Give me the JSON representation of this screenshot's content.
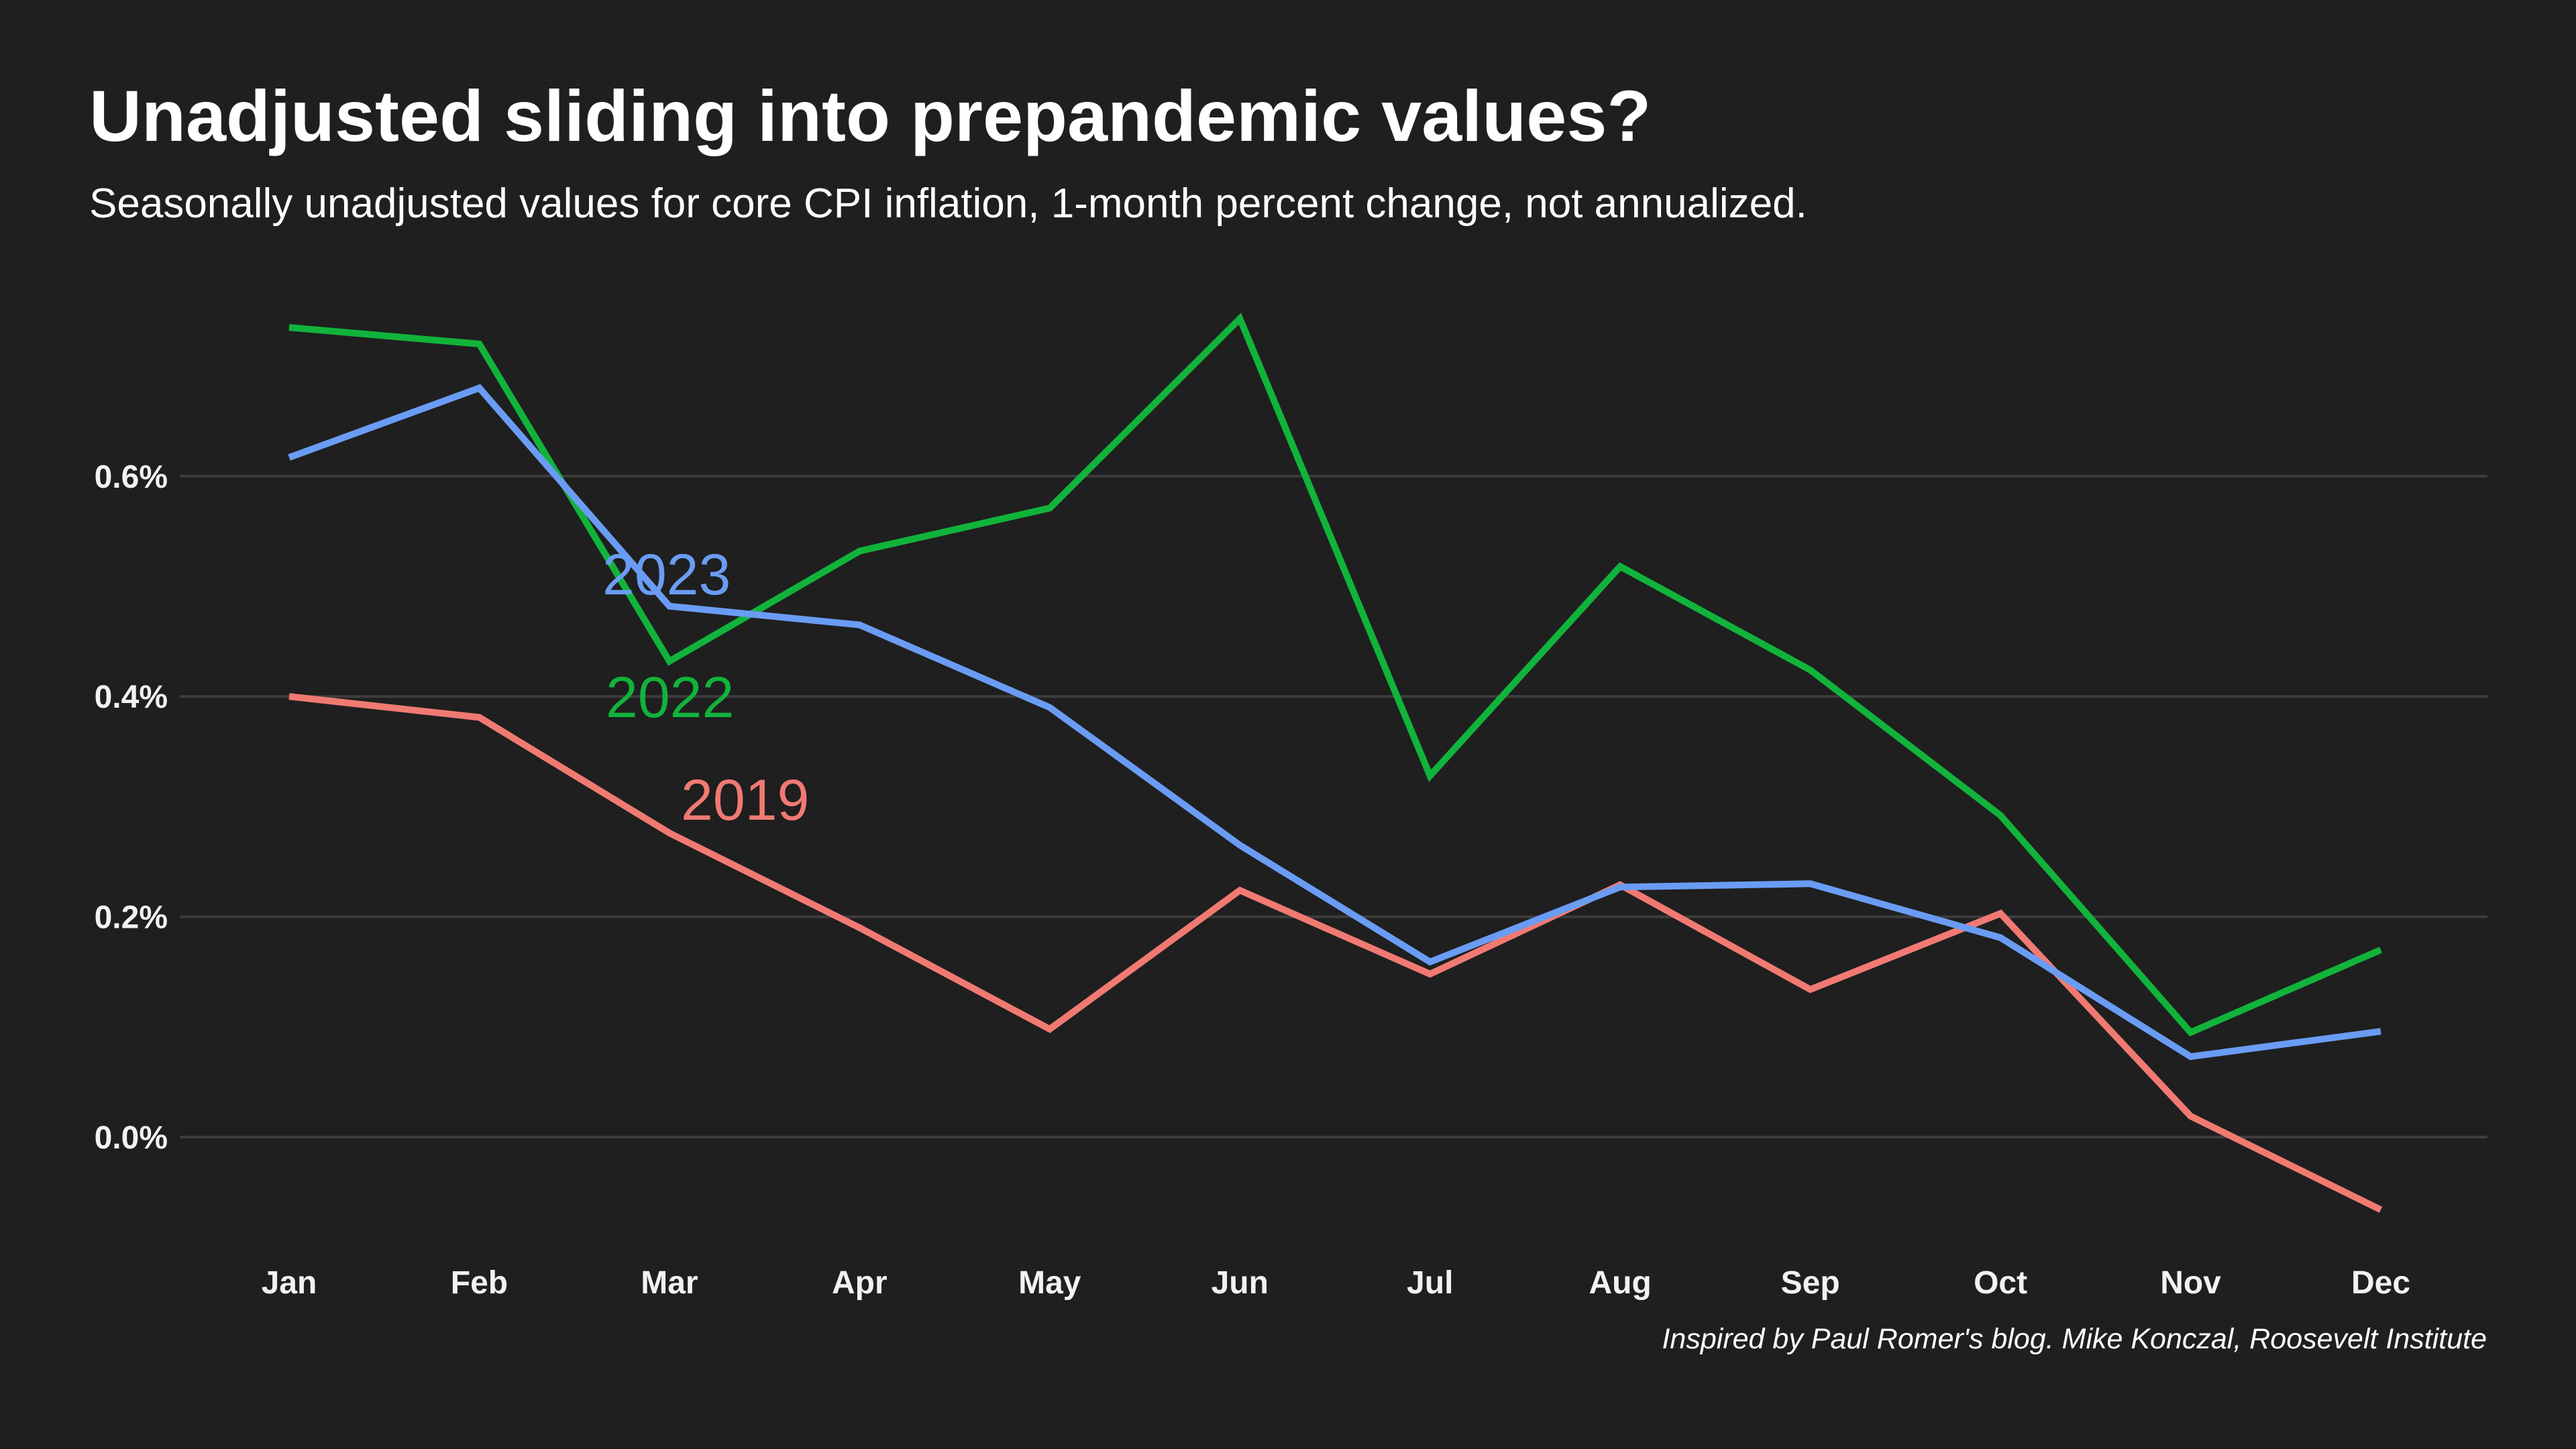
{
  "header": {
    "title": "Unadjusted sliding into prepandemic values?",
    "subtitle": "Seasonally unadjusted values for core CPI inflation, 1-month percent change, not annualized."
  },
  "footer": {
    "caption": "Inspired by Paul Romer's blog. Mike Konczal, Roosevelt Institute"
  },
  "colors": {
    "background": "#1f1f1f",
    "grid": "#3d3d3d",
    "text": "#ffffff"
  },
  "chart_data": {
    "type": "line",
    "title": "Unadjusted sliding into prepandemic values?",
    "subtitle": "Seasonally unadjusted values for core CPI inflation, 1-month percent change, not annualized.",
    "xlabel": "",
    "ylabel": "",
    "categories": [
      "Jan",
      "Feb",
      "Mar",
      "Apr",
      "May",
      "Jun",
      "Jul",
      "Aug",
      "Sep",
      "Oct",
      "Nov",
      "Dec"
    ],
    "ylim": [
      -0.1,
      0.8
    ],
    "yticks": [
      0.0,
      0.2,
      0.4,
      0.6
    ],
    "ytick_labels": [
      "0.0%",
      "0.2%",
      "0.4%",
      "0.6%"
    ],
    "grid": true,
    "legend": "direct labels on lines",
    "series": [
      {
        "name": "2023",
        "color": "#6a9cf4",
        "values": [
          0.617,
          0.68,
          0.482,
          0.465,
          0.39,
          0.265,
          0.159,
          0.227,
          0.23,
          0.181,
          0.073,
          0.096
        ]
      },
      {
        "name": "2022",
        "color": "#11b33b",
        "values": [
          0.735,
          0.72,
          0.432,
          0.532,
          0.571,
          0.743,
          0.328,
          0.518,
          0.424,
          0.292,
          0.095,
          0.17
        ]
      },
      {
        "name": "2019",
        "color": "#f07a72",
        "values": [
          0.4,
          0.381,
          0.276,
          0.19,
          0.098,
          0.224,
          0.148,
          0.229,
          0.134,
          0.203,
          0.019,
          -0.066
        ]
      }
    ]
  }
}
